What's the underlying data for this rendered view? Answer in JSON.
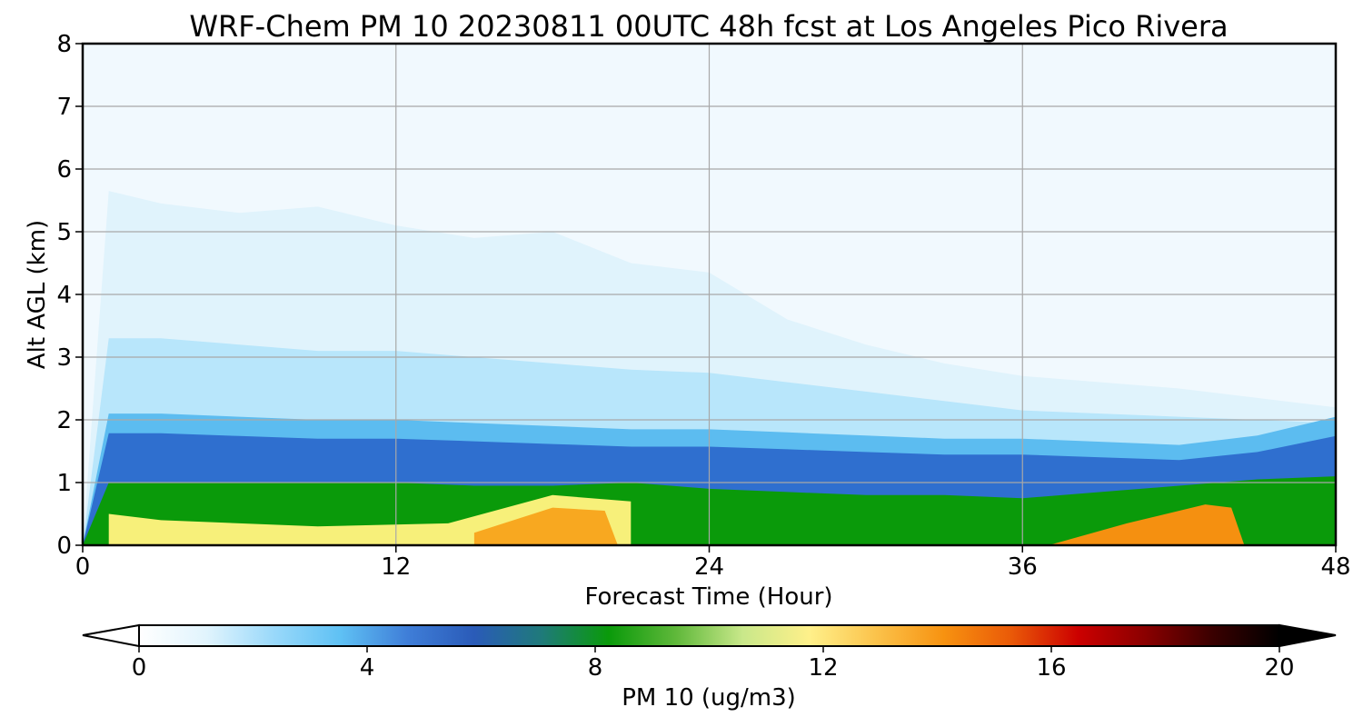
{
  "chart_data": {
    "type": "heatmap",
    "title": "WRF-Chem PM 10  20230811 00UTC 48h fcst at Los Angeles Pico Rivera",
    "xlabel": "Forecast Time (Hour)",
    "ylabel": "Alt AGL (km)",
    "xlim": [
      0,
      48
    ],
    "ylim": [
      0,
      8
    ],
    "x_ticks": [
      "0",
      "12",
      "24",
      "36",
      "48"
    ],
    "y_ticks": [
      "0",
      "1",
      "2",
      "3",
      "4",
      "5",
      "6",
      "7",
      "8"
    ],
    "grid": true,
    "colorbar": {
      "label": "PM 10  (ug/m3)",
      "range": [
        0,
        20
      ],
      "ticks": [
        "0",
        "4",
        "8",
        "12",
        "16",
        "20"
      ],
      "extend": "both",
      "colors": [
        "#ffffff",
        "#e1f4fd",
        "#9ad9fa",
        "#5fc1f4",
        "#3f7ed8",
        "#2a5bb8",
        "#1f7a7a",
        "#0a9a0a",
        "#5fb83a",
        "#c9e88a",
        "#fff08a",
        "#fbc24a",
        "#f79210",
        "#ea5a08",
        "#cc0000",
        "#8a0000",
        "#3a0000",
        "#000000"
      ]
    },
    "contour_levels_km": {
      "note_hours": [
        0,
        1,
        3,
        6,
        9,
        12,
        15,
        18,
        21,
        24,
        27,
        30,
        33,
        36,
        39,
        42,
        45,
        48
      ],
      "lightest_top": [
        0,
        5.65,
        5.45,
        5.3,
        5.4,
        5.1,
        4.9,
        5.0,
        4.5,
        4.35,
        3.6,
        3.2,
        2.9,
        2.7,
        2.6,
        2.5,
        2.35,
        2.2
      ],
      "layer_top": [
        0,
        3.3,
        3.3,
        3.2,
        3.1,
        3.1,
        3.0,
        2.9,
        2.8,
        2.75,
        2.6,
        2.45,
        2.3,
        2.15,
        2.1,
        2.05,
        2.0,
        1.95
      ],
      "mixed_top": [
        0,
        2.1,
        2.1,
        2.05,
        2.0,
        2.0,
        1.95,
        1.9,
        1.85,
        1.85,
        1.8,
        1.75,
        1.7,
        1.7,
        1.65,
        1.6,
        1.75,
        2.05
      ],
      "green_top": [
        0,
        1.0,
        1.0,
        1.0,
        1.0,
        1.0,
        0.95,
        0.95,
        1.0,
        0.9,
        0.85,
        0.8,
        0.8,
        0.75,
        0.85,
        0.95,
        1.05,
        1.1
      ]
    }
  }
}
